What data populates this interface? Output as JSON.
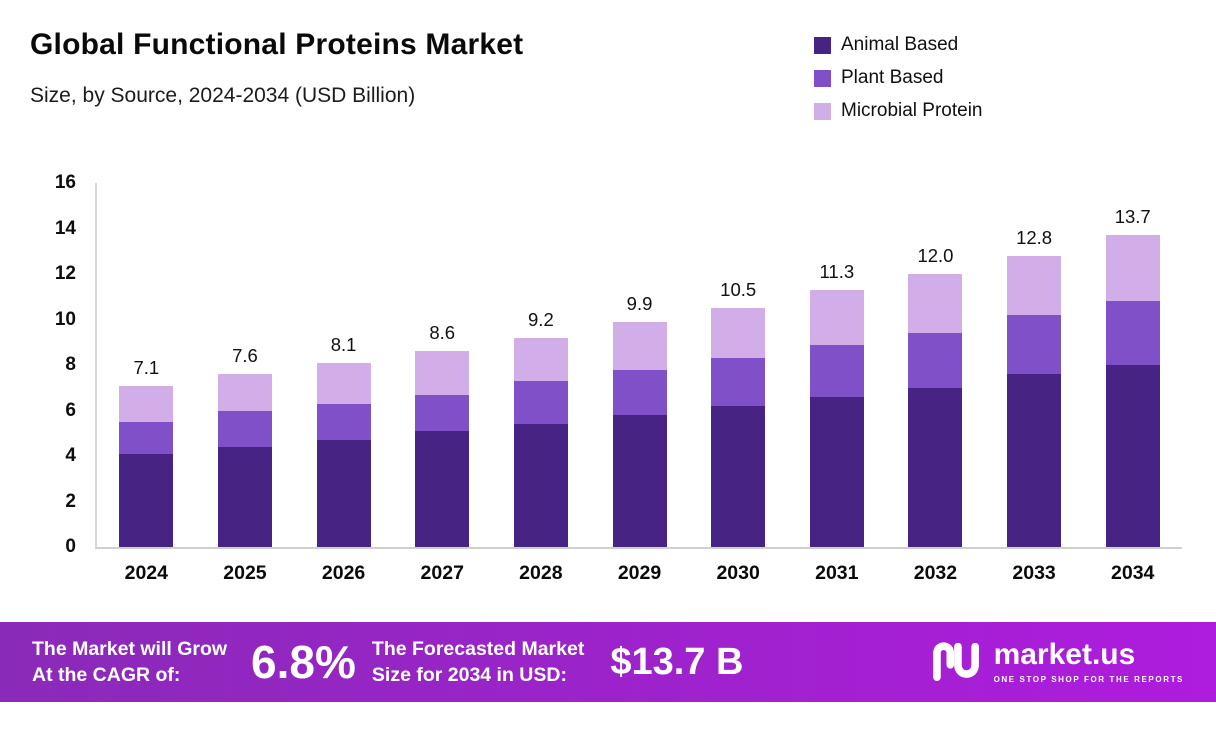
{
  "chart_data": {
    "type": "bar",
    "stacked": true,
    "title": "Global Functional Proteins Market",
    "subtitle": "Size, by Source, 2024-2034 (USD Billion)",
    "categories": [
      "2024",
      "2025",
      "2026",
      "2027",
      "2028",
      "2029",
      "2030",
      "2031",
      "2032",
      "2033",
      "2034"
    ],
    "series": [
      {
        "name": "Animal Based",
        "color": "#472483",
        "values": [
          4.1,
          4.4,
          4.7,
          5.1,
          5.4,
          5.8,
          6.2,
          6.6,
          7.0,
          7.6,
          8.0
        ]
      },
      {
        "name": "Plant Based",
        "color": "#8050c8",
        "values": [
          1.4,
          1.6,
          1.6,
          1.6,
          1.9,
          2.0,
          2.1,
          2.3,
          2.4,
          2.6,
          2.8
        ]
      },
      {
        "name": "Microbial Protein",
        "color": "#d2aee9",
        "values": [
          1.6,
          1.6,
          1.8,
          1.9,
          1.9,
          2.1,
          2.2,
          2.4,
          2.6,
          2.6,
          2.9
        ]
      }
    ],
    "totals": [
      "7.1",
      "7.6",
      "8.1",
      "8.6",
      "9.2",
      "9.9",
      "10.5",
      "11.3",
      "12.0",
      "12.8",
      "13.7"
    ],
    "ylim": [
      0,
      16
    ],
    "ytick_step": 2,
    "legend_position": "top-right",
    "grid": false
  },
  "footer": {
    "cagr_label_line1": "The Market will Grow",
    "cagr_label_line2": "At the CAGR of:",
    "cagr_value": "6.8%",
    "forecast_label_line1": "The Forecasted Market",
    "forecast_label_line2": "Size for 2034 in USD:",
    "forecast_value": "$13.7 B",
    "brand": "market.us",
    "brand_tagline": "ONE STOP SHOP FOR THE REPORTS",
    "gradient_left": "#8a2ab8",
    "gradient_right": "#ae1cdd"
  }
}
